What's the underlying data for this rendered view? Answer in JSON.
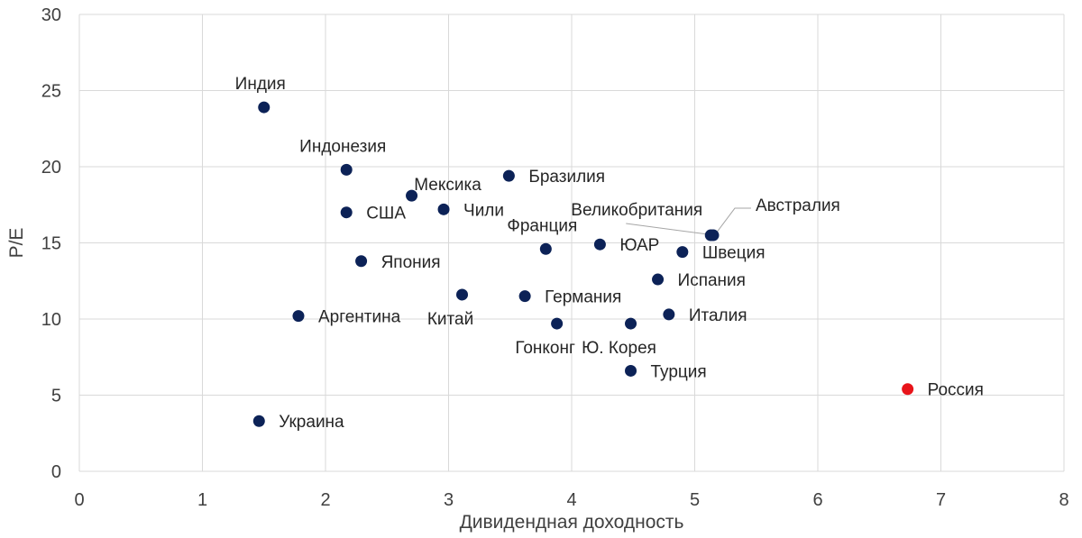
{
  "colors": {
    "default_point": "#0c2257",
    "highlight_point": "#e8141a",
    "grid": "#d9d9d9",
    "text": "#404040"
  },
  "chart_data": {
    "type": "scatter",
    "title": "",
    "xlabel": "Дивидендная доходность",
    "ylabel": "P/E",
    "xlim": [
      0,
      8
    ],
    "ylim": [
      0,
      30
    ],
    "x_ticks": [
      "0",
      "1",
      "2",
      "3",
      "4",
      "5",
      "6",
      "7",
      "8"
    ],
    "y_ticks": [
      "0",
      "5",
      "10",
      "15",
      "20",
      "25",
      "30"
    ],
    "grid": true,
    "points": [
      {
        "label": "Индия",
        "x": 1.5,
        "y": 23.9,
        "label_pos": "top"
      },
      {
        "label": "Индонезия",
        "x": 2.17,
        "y": 19.8,
        "label_pos": "top"
      },
      {
        "label": "Бразилия",
        "x": 3.49,
        "y": 19.4,
        "label_pos": "right"
      },
      {
        "label": "Мексика",
        "x": 2.7,
        "y": 18.1,
        "label_pos": "top-right"
      },
      {
        "label": "США",
        "x": 2.17,
        "y": 17.0,
        "label_pos": "right"
      },
      {
        "label": "Чили",
        "x": 2.96,
        "y": 17.2,
        "label_pos": "right"
      },
      {
        "label": "Великобритания",
        "x": 5.13,
        "y": 15.5,
        "label_pos": "top-left-leader"
      },
      {
        "label": "Австралия",
        "x": 5.15,
        "y": 15.5,
        "label_pos": "top-right-leader"
      },
      {
        "label": "Франция",
        "x": 3.79,
        "y": 14.6,
        "label_pos": "top"
      },
      {
        "label": "ЮАР",
        "x": 4.23,
        "y": 14.9,
        "label_pos": "right"
      },
      {
        "label": "Швеция",
        "x": 4.9,
        "y": 14.4,
        "label_pos": "right"
      },
      {
        "label": "Япония",
        "x": 2.29,
        "y": 13.8,
        "label_pos": "right"
      },
      {
        "label": "Испания",
        "x": 4.7,
        "y": 12.6,
        "label_pos": "right"
      },
      {
        "label": "Китай",
        "x": 3.11,
        "y": 11.6,
        "label_pos": "bottom"
      },
      {
        "label": "Германия",
        "x": 3.62,
        "y": 11.5,
        "label_pos": "right"
      },
      {
        "label": "Аргентина",
        "x": 1.78,
        "y": 10.2,
        "label_pos": "right"
      },
      {
        "label": "Италия",
        "x": 4.79,
        "y": 10.3,
        "label_pos": "right"
      },
      {
        "label": "Гонконг",
        "x": 3.88,
        "y": 9.7,
        "label_pos": "bottom"
      },
      {
        "label": "Ю. Корея",
        "x": 4.48,
        "y": 9.7,
        "label_pos": "bottom"
      },
      {
        "label": "Турция",
        "x": 4.48,
        "y": 6.6,
        "label_pos": "right"
      },
      {
        "label": "Россия",
        "x": 6.73,
        "y": 5.4,
        "label_pos": "right",
        "highlight": true
      },
      {
        "label": "Украина",
        "x": 1.46,
        "y": 3.3,
        "label_pos": "right"
      }
    ]
  }
}
